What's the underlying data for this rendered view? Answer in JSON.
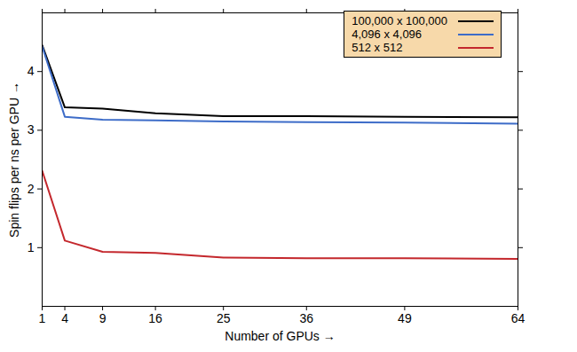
{
  "chart_data": {
    "type": "line",
    "x_label": "Number of GPUs",
    "y_label": "Spin flips per ns per GPU",
    "x": [
      1,
      4,
      9,
      16,
      25,
      36,
      49,
      64
    ],
    "series": [
      {
        "name": "100,000 x 100,000",
        "color": "#000000",
        "values": [
          4.45,
          3.39,
          3.37,
          3.29,
          3.24,
          3.24,
          3.23,
          3.22
        ]
      },
      {
        "name": "4,096 x 4,096",
        "color": "#3d6cc8",
        "values": [
          4.43,
          3.23,
          3.18,
          3.17,
          3.15,
          3.14,
          3.13,
          3.11
        ]
      },
      {
        "name": "512 x 512",
        "color": "#c4282d",
        "values": [
          2.31,
          1.12,
          0.93,
          0.91,
          0.83,
          0.82,
          0.82,
          0.81
        ]
      }
    ],
    "xlim": [
      1,
      64
    ],
    "xticks": [
      1,
      4,
      9,
      16,
      25,
      36,
      49,
      64
    ],
    "ylim": [
      0,
      5
    ],
    "yticks": [
      1,
      2,
      3,
      4
    ],
    "grid": false,
    "legend": "top-right"
  }
}
